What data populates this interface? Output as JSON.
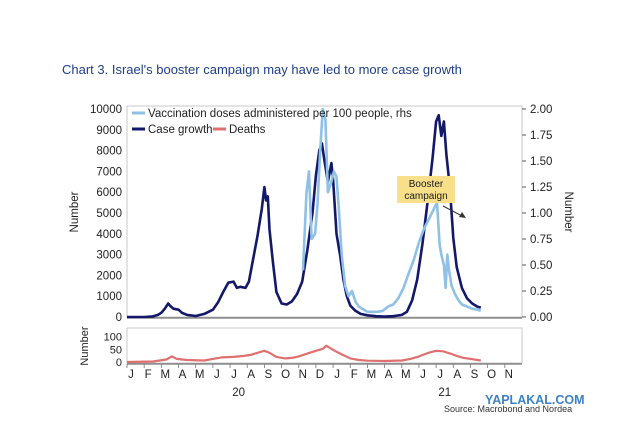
{
  "title": "Chart 3. Israel's booster campaign may have led to more case growth",
  "source": "Source: Macrobond and Nordea",
  "watermark": "YAPLAKAL.COM",
  "chart_data": {
    "type": "line",
    "title": "Chart 3. Israel's booster campaign may have led to more case growth",
    "x_month_labels": [
      "J",
      "F",
      "M",
      "A",
      "M",
      "J",
      "J",
      "A",
      "S",
      "O",
      "N",
      "D",
      "J",
      "F",
      "M",
      "A",
      "M",
      "J",
      "J",
      "A",
      "S",
      "O",
      "N"
    ],
    "x_year_labels": [
      {
        "label": "20",
        "month_index": 6
      },
      {
        "label": "21",
        "month_index": 18
      }
    ],
    "x_range_months": [
      0,
      23
    ],
    "top_panel": {
      "left_axis": {
        "label": "Number",
        "ylim": [
          0,
          10000
        ],
        "ticks": [
          "0",
          "1000",
          "2000",
          "3000",
          "4000",
          "5000",
          "6000",
          "7000",
          "8000",
          "9000",
          "10000"
        ]
      },
      "right_axis": {
        "label": "Number",
        "ylim": [
          0,
          2.0
        ],
        "ticks": [
          "0.00",
          "0.25",
          "0.50",
          "0.75",
          "1.00",
          "1.25",
          "1.50",
          "1.75",
          "2.00"
        ]
      },
      "legend": {
        "placement": "top-left",
        "entries": [
          {
            "label": "Vaccination doses administered per 100 people, rhs",
            "color": "#8fc1e6"
          },
          {
            "label": "Case growth",
            "color": "#14186b"
          },
          {
            "label": "Deaths",
            "color": "#e07070"
          }
        ]
      },
      "annotation": {
        "text_lines": [
          "Booster",
          "campaign"
        ],
        "box_color": "#f7e089"
      },
      "series": [
        {
          "name": "Case growth",
          "axis": "left",
          "color": "#14186b",
          "points": [
            [
              0.0,
              0
            ],
            [
              1.0,
              0
            ],
            [
              1.5,
              30
            ],
            [
              1.8,
              100
            ],
            [
              2.0,
              200
            ],
            [
              2.2,
              400
            ],
            [
              2.4,
              650
            ],
            [
              2.5,
              550
            ],
            [
              2.7,
              400
            ],
            [
              3.0,
              350
            ],
            [
              3.2,
              200
            ],
            [
              3.5,
              100
            ],
            [
              4.0,
              50
            ],
            [
              4.5,
              150
            ],
            [
              5.0,
              350
            ],
            [
              5.3,
              700
            ],
            [
              5.6,
              1200
            ],
            [
              5.9,
              1650
            ],
            [
              6.2,
              1700
            ],
            [
              6.4,
              1400
            ],
            [
              6.6,
              1450
            ],
            [
              6.9,
              1400
            ],
            [
              7.1,
              1700
            ],
            [
              7.3,
              2600
            ],
            [
              7.6,
              3900
            ],
            [
              7.85,
              5200
            ],
            [
              8.0,
              6250
            ],
            [
              8.1,
              5600
            ],
            [
              8.2,
              5800
            ],
            [
              8.3,
              4200
            ],
            [
              8.5,
              2600
            ],
            [
              8.7,
              1200
            ],
            [
              9.0,
              650
            ],
            [
              9.3,
              600
            ],
            [
              9.6,
              750
            ],
            [
              9.9,
              1100
            ],
            [
              10.2,
              1700
            ],
            [
              10.5,
              3200
            ],
            [
              10.8,
              5000
            ],
            [
              11.0,
              6800
            ],
            [
              11.2,
              8000
            ],
            [
              11.35,
              8350
            ],
            [
              11.5,
              7500
            ],
            [
              11.7,
              6500
            ],
            [
              11.9,
              7400
            ],
            [
              12.0,
              6600
            ],
            [
              12.2,
              4000
            ],
            [
              12.4,
              3000
            ],
            [
              12.6,
              1800
            ],
            [
              12.8,
              1000
            ],
            [
              13.0,
              550
            ],
            [
              13.3,
              300
            ],
            [
              13.6,
              150
            ],
            [
              14.0,
              80
            ],
            [
              14.5,
              40
            ],
            [
              15.0,
              20
            ],
            [
              15.5,
              40
            ],
            [
              16.0,
              100
            ],
            [
              16.3,
              250
            ],
            [
              16.6,
              800
            ],
            [
              16.9,
              1800
            ],
            [
              17.2,
              3500
            ],
            [
              17.5,
              5500
            ],
            [
              17.8,
              7700
            ],
            [
              18.0,
              9400
            ],
            [
              18.15,
              9700
            ],
            [
              18.3,
              8700
            ],
            [
              18.45,
              9400
            ],
            [
              18.6,
              7800
            ],
            [
              18.8,
              6200
            ],
            [
              19.0,
              3800
            ],
            [
              19.2,
              2400
            ],
            [
              19.5,
              1400
            ],
            [
              19.8,
              900
            ],
            [
              20.1,
              650
            ],
            [
              20.4,
              500
            ],
            [
              20.6,
              450
            ]
          ]
        },
        {
          "name": "Vaccination doses administered per 100 people, rhs",
          "axis": "right",
          "color": "#8fc1e6",
          "points": [
            [
              10.25,
              0.45
            ],
            [
              10.45,
              1.2
            ],
            [
              10.6,
              1.4
            ],
            [
              10.75,
              0.75
            ],
            [
              10.95,
              0.8
            ],
            [
              11.1,
              1.1
            ],
            [
              11.25,
              1.6
            ],
            [
              11.4,
              2.0
            ],
            [
              11.55,
              1.9
            ],
            [
              11.7,
              1.2
            ],
            [
              11.9,
              1.3
            ],
            [
              12.05,
              1.4
            ],
            [
              12.2,
              1.35
            ],
            [
              12.35,
              1.0
            ],
            [
              12.5,
              0.6
            ],
            [
              12.7,
              0.3
            ],
            [
              12.9,
              0.2
            ],
            [
              13.1,
              0.25
            ],
            [
              13.3,
              0.15
            ],
            [
              13.5,
              0.1
            ],
            [
              13.7,
              0.08
            ],
            [
              14.0,
              0.05
            ],
            [
              14.3,
              0.05
            ],
            [
              14.6,
              0.05
            ],
            [
              14.9,
              0.06
            ],
            [
              15.2,
              0.1
            ],
            [
              15.5,
              0.12
            ],
            [
              15.8,
              0.18
            ],
            [
              16.1,
              0.28
            ],
            [
              16.4,
              0.42
            ],
            [
              16.7,
              0.55
            ],
            [
              17.0,
              0.72
            ],
            [
              17.3,
              0.85
            ],
            [
              17.6,
              0.95
            ],
            [
              17.9,
              1.05
            ],
            [
              18.05,
              1.1
            ],
            [
              18.2,
              0.7
            ],
            [
              18.3,
              0.6
            ],
            [
              18.45,
              0.5
            ],
            [
              18.55,
              0.28
            ],
            [
              18.65,
              0.6
            ],
            [
              18.75,
              0.45
            ],
            [
              18.9,
              0.3
            ],
            [
              19.1,
              0.22
            ],
            [
              19.3,
              0.16
            ],
            [
              19.5,
              0.12
            ],
            [
              19.8,
              0.1
            ],
            [
              20.1,
              0.08
            ],
            [
              20.4,
              0.07
            ],
            [
              20.6,
              0.06
            ]
          ]
        }
      ]
    },
    "bottom_panel": {
      "axis": {
        "label": "Number",
        "ticks": [
          "0",
          "50",
          "100"
        ]
      },
      "series": [
        {
          "name": "Deaths",
          "color": "#e07070",
          "points": [
            [
              0.0,
              0
            ],
            [
              1.5,
              2
            ],
            [
              2.3,
              10
            ],
            [
              2.6,
              22
            ],
            [
              2.9,
              12
            ],
            [
              3.5,
              8
            ],
            [
              4.5,
              6
            ],
            [
              5.0,
              12
            ],
            [
              5.5,
              18
            ],
            [
              6.2,
              20
            ],
            [
              6.8,
              24
            ],
            [
              7.2,
              28
            ],
            [
              7.7,
              38
            ],
            [
              8.0,
              44
            ],
            [
              8.3,
              36
            ],
            [
              8.7,
              20
            ],
            [
              9.2,
              14
            ],
            [
              9.6,
              16
            ],
            [
              10.0,
              22
            ],
            [
              10.5,
              33
            ],
            [
              11.0,
              44
            ],
            [
              11.4,
              52
            ],
            [
              11.6,
              64
            ],
            [
              11.8,
              56
            ],
            [
              12.1,
              44
            ],
            [
              12.5,
              30
            ],
            [
              13.0,
              14
            ],
            [
              13.5,
              8
            ],
            [
              14.0,
              5
            ],
            [
              15.0,
              4
            ],
            [
              16.0,
              6
            ],
            [
              16.5,
              12
            ],
            [
              17.0,
              22
            ],
            [
              17.5,
              35
            ],
            [
              18.0,
              44
            ],
            [
              18.4,
              42
            ],
            [
              18.8,
              34
            ],
            [
              19.2,
              24
            ],
            [
              19.6,
              16
            ],
            [
              20.0,
              12
            ],
            [
              20.4,
              8
            ],
            [
              20.6,
              6
            ]
          ]
        }
      ]
    }
  }
}
